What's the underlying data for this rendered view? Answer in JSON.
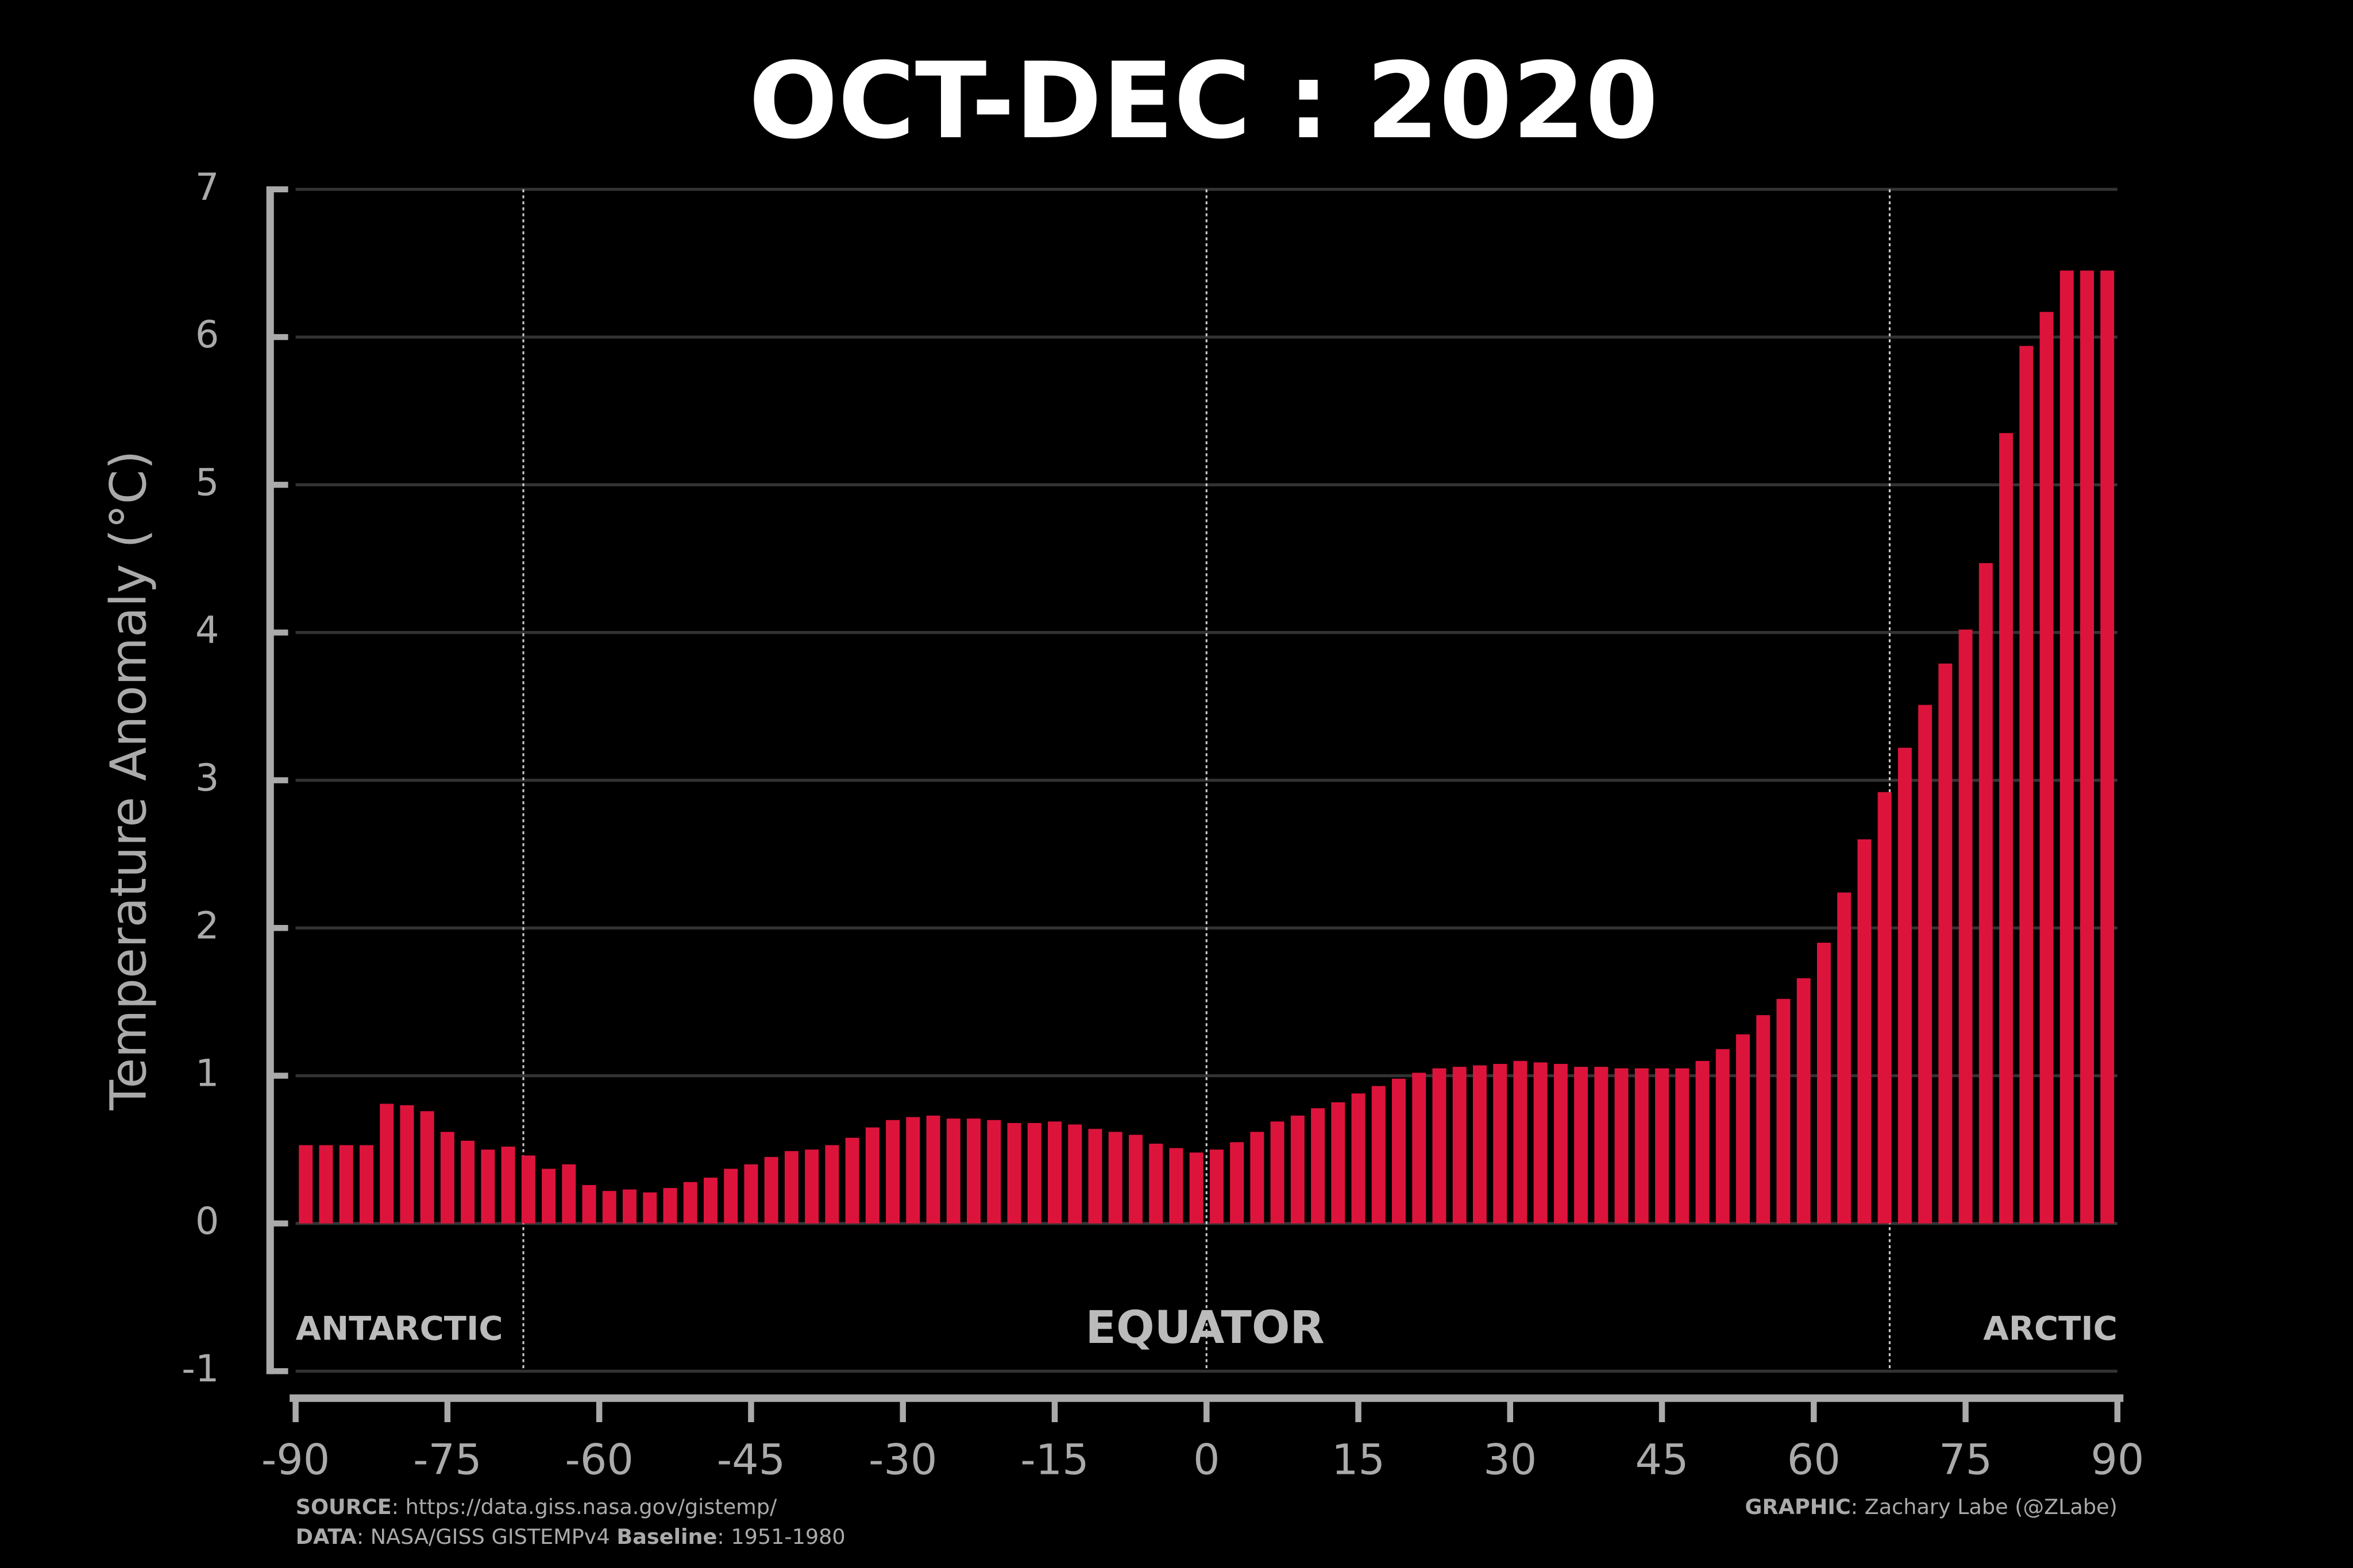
{
  "chart_data": {
    "type": "bar",
    "title": "OCT-DEC : 2020",
    "y_label": "Temperature Anomaly (°C)",
    "x": [
      -89,
      -87,
      -85,
      -83,
      -81,
      -79,
      -77,
      -75,
      -73,
      -71,
      -69,
      -67,
      -65,
      -63,
      -61,
      -59,
      -57,
      -55,
      -53,
      -51,
      -49,
      -47,
      -45,
      -43,
      -41,
      -39,
      -37,
      -35,
      -33,
      -31,
      -29,
      -27,
      -25,
      -23,
      -21,
      -19,
      -17,
      -15,
      -13,
      -11,
      -9,
      -7,
      -5,
      -3,
      -1,
      1,
      3,
      5,
      7,
      9,
      11,
      13,
      15,
      17,
      19,
      21,
      23,
      25,
      27,
      29,
      31,
      33,
      35,
      37,
      39,
      41,
      43,
      45,
      47,
      49,
      51,
      53,
      55,
      57,
      59,
      61,
      63,
      65,
      67,
      69,
      71,
      73,
      75,
      77,
      79,
      81,
      83,
      85,
      87,
      89
    ],
    "values": [
      0.53,
      0.53,
      0.53,
      0.53,
      0.81,
      0.8,
      0.76,
      0.62,
      0.56,
      0.5,
      0.52,
      0.46,
      0.37,
      0.4,
      0.26,
      0.22,
      0.23,
      0.21,
      0.24,
      0.28,
      0.31,
      0.37,
      0.4,
      0.45,
      0.49,
      0.5,
      0.53,
      0.58,
      0.65,
      0.7,
      0.72,
      0.73,
      0.71,
      0.71,
      0.7,
      0.68,
      0.68,
      0.69,
      0.67,
      0.64,
      0.62,
      0.6,
      0.54,
      0.51,
      0.48,
      0.5,
      0.55,
      0.62,
      0.69,
      0.73,
      0.78,
      0.82,
      0.88,
      0.93,
      0.98,
      1.02,
      1.05,
      1.06,
      1.07,
      1.08,
      1.1,
      1.09,
      1.08,
      1.06,
      1.06,
      1.05,
      1.05,
      1.05,
      1.05,
      1.1,
      1.18,
      1.28,
      1.41,
      1.52,
      1.66,
      1.9,
      2.24,
      2.6,
      2.92,
      3.22,
      3.51,
      3.79,
      4.02,
      4.47,
      5.35,
      5.94,
      6.17,
      6.45,
      6.45,
      6.45
    ],
    "color": "#dc143c",
    "xlim": [
      -90,
      90
    ],
    "xticks": [
      -90,
      -75,
      -60,
      -45,
      -30,
      -15,
      0,
      15,
      30,
      45,
      60,
      75,
      90
    ],
    "ylim": [
      -1,
      7
    ],
    "yticks": [
      -1,
      0,
      1,
      2,
      3,
      4,
      5,
      6,
      7
    ],
    "grid": true,
    "vlines": [
      -67.5,
      0,
      67.5
    ],
    "annotations": [
      "ANTARCTIC",
      "EQUATOR",
      "ARCTIC"
    ],
    "source": {
      "label": "SOURCE",
      "text": ": https://data.giss.nasa.gov/gistemp/"
    },
    "data_note": {
      "label": "DATA",
      "text": ": NASA/GISS GISTEMPv4 ",
      "baseline_label": "Baseline",
      "baseline_text": ":  1951-1980"
    },
    "graphic": {
      "label": "GRAPHIC",
      "text": ": Zachary Labe (@ZLabe)"
    }
  }
}
